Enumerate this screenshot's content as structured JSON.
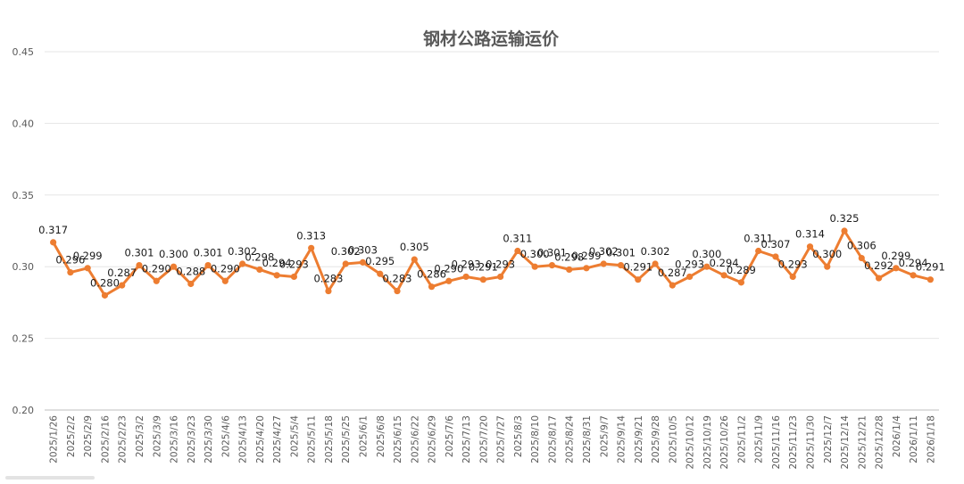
{
  "chart_data": {
    "type": "line",
    "title": "钢材公路运输运价",
    "xlabel": "",
    "ylabel": "",
    "ylim": [
      0.2,
      0.45
    ],
    "yticks": [
      "0.20",
      "0.25",
      "0.30",
      "0.35",
      "0.40",
      "0.45"
    ],
    "grid": true,
    "legend": "none",
    "line_color": "#ED7D31",
    "categories": [
      "2025/1/26",
      "2025/2/2",
      "2025/2/9",
      "2025/2/16",
      "2025/2/23",
      "2025/3/2",
      "2025/3/9",
      "2025/3/16",
      "2025/3/23",
      "2025/3/30",
      "2025/4/6",
      "2025/4/13",
      "2025/4/20",
      "2025/4/27",
      "2025/5/4",
      "2025/5/11",
      "2025/5/18",
      "2025/5/25",
      "2025/6/1",
      "2025/6/8",
      "2025/6/15",
      "2025/6/22",
      "2025/6/29",
      "2025/7/6",
      "2025/7/13",
      "2025/7/20",
      "2025/7/27",
      "2025/8/3",
      "2025/8/10",
      "2025/8/17",
      "2025/8/24",
      "2025/8/31",
      "2025/9/7",
      "2025/9/14",
      "2025/9/21",
      "2025/9/28",
      "2025/10/5",
      "2025/10/12",
      "2025/10/19",
      "2025/10/26",
      "2025/11/2",
      "2025/11/9",
      "2025/11/16",
      "2025/11/23",
      "2025/11/30",
      "2025/12/7",
      "2025/12/14",
      "2025/12/21",
      "2025/12/28",
      "2026/1/4",
      "2026/1/11",
      "2026/1/18"
    ],
    "values": [
      0.317,
      0.296,
      0.299,
      0.28,
      0.287,
      0.301,
      0.29,
      0.3,
      0.288,
      0.301,
      0.29,
      0.302,
      0.298,
      0.294,
      0.293,
      0.313,
      0.283,
      0.302,
      0.303,
      0.295,
      0.283,
      0.305,
      0.286,
      0.29,
      0.293,
      0.291,
      0.293,
      0.311,
      0.3,
      0.301,
      0.298,
      0.299,
      0.302,
      0.301,
      0.291,
      0.302,
      0.287,
      0.293,
      0.3,
      0.294,
      0.289,
      0.311,
      0.307,
      0.293,
      0.314,
      0.3,
      0.325,
      0.306,
      0.292,
      0.299,
      0.294,
      0.291
    ],
    "data_labels": [
      "0.317",
      "0.296",
      "0.299",
      "0.280",
      "0.287",
      "0.301",
      "0.290",
      "0.300",
      "0.288",
      "0.301",
      "0.290",
      "0.302",
      "0.298",
      "0.294",
      "0.293",
      "0.313",
      "0.283",
      "0.302",
      "0.303",
      "0.295",
      "0.283",
      "0.305",
      "0.286",
      "0.290",
      "0.293",
      "0.291",
      "0.293",
      "0.311",
      "0.300",
      "0.301",
      "0.298",
      "0.299",
      "0.302",
      "0.301",
      "0.291",
      "0.302",
      "0.287",
      "0.293",
      "0.300",
      "0.294",
      "0.289",
      "0.311",
      "0.307",
      "0.293",
      "0.314",
      "0.300",
      "0.325",
      "0.306",
      "0.292",
      "0.299",
      "0.294",
      "0.291"
    ]
  }
}
